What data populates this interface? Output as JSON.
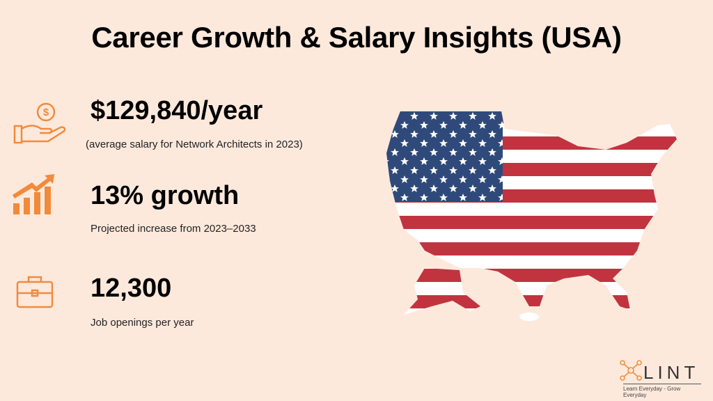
{
  "title": "Career Growth & Salary Insights (USA)",
  "stats": [
    {
      "value": "$129,840/year",
      "description": "(average salary for Network Architects in 2023)"
    },
    {
      "value": "13% growth",
      "description": "Projected increase from 2023–2033"
    },
    {
      "value": "12,300",
      "description": "Job openings per year"
    }
  ],
  "logo": {
    "name": "LINT",
    "tagline": "Learn Everyday - Grow Everyday"
  }
}
